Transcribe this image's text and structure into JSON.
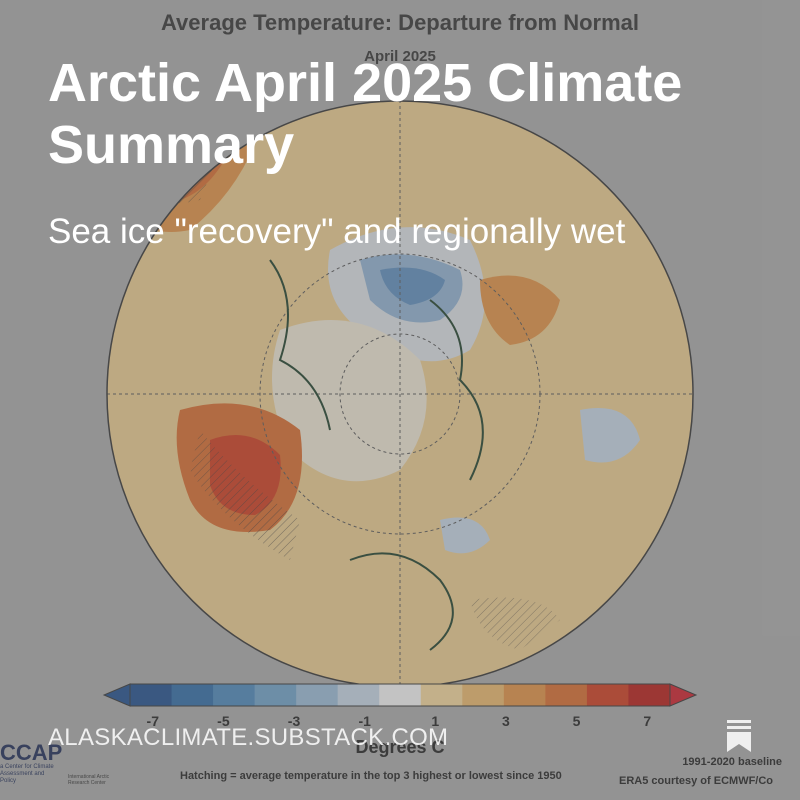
{
  "post": {
    "title": "Arctic April 2025 Climate Summary",
    "subtitle": "Sea ice \"recovery\" and regionally wet",
    "site": "ALASKACLIMATE.SUBSTACK.COM",
    "bookmark_icon": "bookmark-icon"
  },
  "map": {
    "title": "Average Temperature: Departure from Normal",
    "subtitle": "April 2025",
    "colorbar_label": "Degrees C",
    "ticks": [
      "-7",
      "-5",
      "-3",
      "-1",
      "1",
      "3",
      "5",
      "7"
    ],
    "colors": [
      "#1f4e8c",
      "#2e6aa5",
      "#4a86b9",
      "#6ea0c6",
      "#98b8d4",
      "#c4d3e2",
      "#f2f2f2",
      "#f2d59a",
      "#e8b56a",
      "#df9042",
      "#d66a2d",
      "#cc3b1e",
      "#b51b16"
    ],
    "hatch_note": "Hatching = average temperature in the top 3 highest or lowest since 1950",
    "baseline": "1991-2020 baseline",
    "credit": "ERA5 courtesy of ECMWF/Co",
    "logo_acronym": "CCAP",
    "logo_org": "a Center for Climate Assessment and Policy",
    "logo_partner": "International Arctic Research Center"
  }
}
